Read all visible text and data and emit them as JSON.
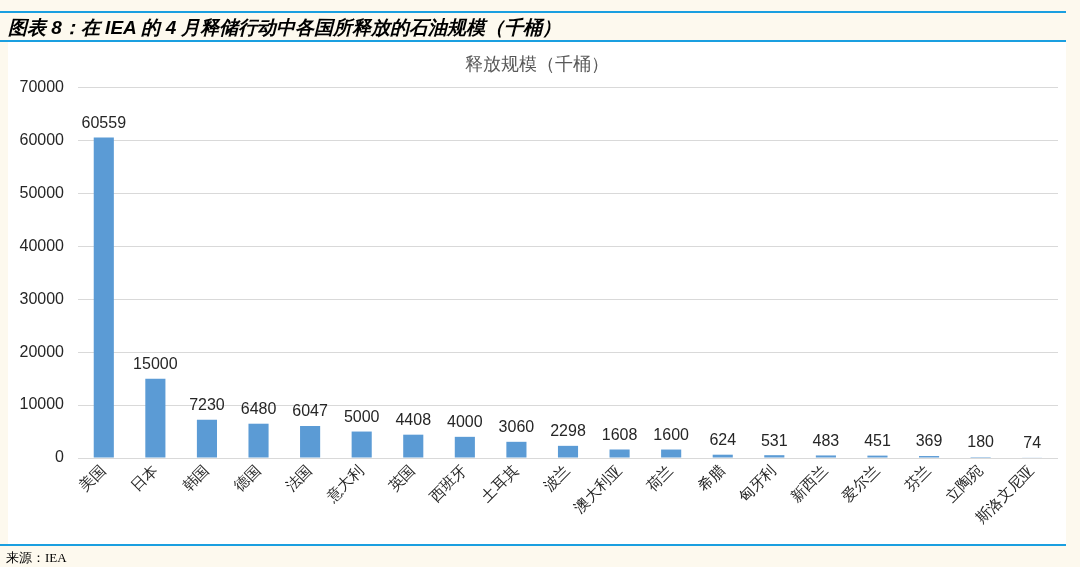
{
  "chart_data": {
    "type": "bar",
    "title": "图表 8：在 IEA 的 4 月释储行动中各国所释放的石油规模（千桶）",
    "subtitle": "释放规模（千桶）",
    "categories": [
      "美国",
      "日本",
      "韩国",
      "德国",
      "法国",
      "意大利",
      "英国",
      "西班牙",
      "土耳其",
      "波兰",
      "澳大利亚",
      "荷兰",
      "希腊",
      "匈牙利",
      "新西兰",
      "爱尔兰",
      "芬兰",
      "立陶宛",
      "斯洛文尼亚"
    ],
    "values": [
      60559,
      15000,
      7230,
      6480,
      6047,
      5000,
      4408,
      4000,
      3060,
      2298,
      1608,
      1600,
      624,
      531,
      483,
      451,
      369,
      180,
      74
    ],
    "color": "#5b9bd5",
    "ylim": [
      0,
      70000
    ],
    "yticks": [
      0,
      10000,
      20000,
      30000,
      40000,
      50000,
      60000,
      70000
    ],
    "grid": "y",
    "data_labels": true,
    "annotations": [
      "来源：IEA"
    ]
  }
}
